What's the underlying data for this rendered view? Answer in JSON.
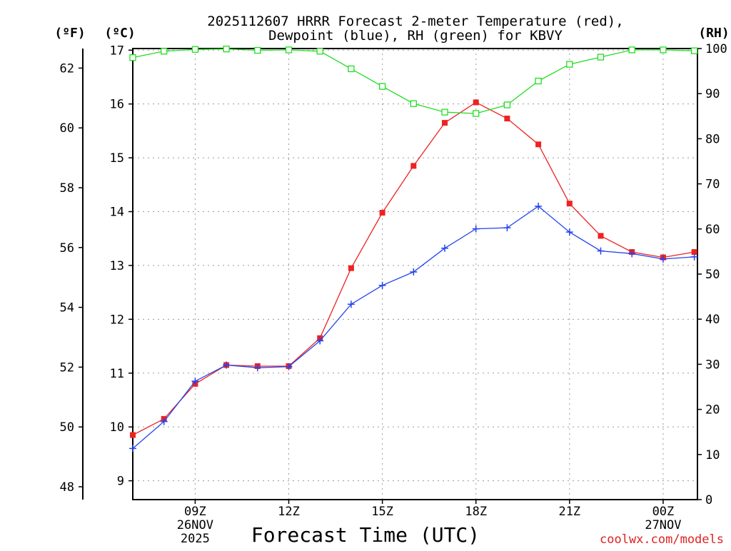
{
  "chart_data": {
    "type": "line",
    "title_line1": "2025112607 HRRR Forecast 2-meter Temperature (red),",
    "title_line2": "Dewpoint (blue), RH (green) for KBVY",
    "xlabel": "Forecast Time (UTC)",
    "left_unit_f": "(ºF)",
    "left_unit_c": "(ºC)",
    "right_unit_rh": "(RH)",
    "credit": "coolwx.com/models",
    "x_hours": [
      7,
      8,
      9,
      10,
      11,
      12,
      13,
      14,
      15,
      16,
      17,
      18,
      19,
      20,
      21,
      22,
      23,
      24,
      25
    ],
    "xlim": [
      7,
      25.1
    ],
    "x_ticks": [
      {
        "hour": 9,
        "lines": [
          "09Z",
          "26NOV",
          "2025"
        ]
      },
      {
        "hour": 12,
        "lines": [
          "12Z"
        ]
      },
      {
        "hour": 15,
        "lines": [
          "15Z"
        ]
      },
      {
        "hour": 18,
        "lines": [
          "18Z"
        ]
      },
      {
        "hour": 21,
        "lines": [
          "21Z"
        ]
      },
      {
        "hour": 24,
        "lines": [
          "00Z",
          "27NOV"
        ]
      }
    ],
    "ylim_c": [
      8.65,
      17.03
    ],
    "ylim_rh": [
      0,
      100
    ],
    "c_ticks": [
      9,
      10,
      11,
      12,
      13,
      14,
      15,
      16,
      17
    ],
    "f_ticks": [
      48,
      50,
      52,
      54,
      56,
      58,
      60,
      62
    ],
    "rh_ticks": [
      0,
      10,
      20,
      30,
      40,
      50,
      60,
      70,
      80,
      90,
      100
    ],
    "grid": true,
    "series": [
      {
        "name": "Temperature",
        "axis": "c",
        "color": "#ee2222",
        "marker": "filled-square",
        "values": [
          9.85,
          10.15,
          10.8,
          11.15,
          11.13,
          11.13,
          11.65,
          12.95,
          13.98,
          14.85,
          15.65,
          16.03,
          15.73,
          15.25,
          14.15,
          13.55,
          13.25,
          13.15,
          13.25
        ]
      },
      {
        "name": "Dewpoint",
        "axis": "c",
        "color": "#2244ee",
        "marker": "plus",
        "values": [
          9.6,
          10.1,
          10.85,
          11.15,
          11.1,
          11.12,
          11.6,
          12.28,
          12.63,
          12.88,
          13.32,
          13.68,
          13.7,
          14.1,
          13.62,
          13.27,
          13.22,
          13.12,
          13.16
        ]
      },
      {
        "name": "RH",
        "axis": "rh",
        "color": "#22dd22",
        "marker": "open-square",
        "values": [
          98.0,
          99.4,
          99.8,
          99.9,
          99.6,
          99.7,
          99.4,
          95.5,
          91.6,
          87.8,
          85.9,
          85.6,
          87.5,
          92.8,
          96.5,
          98.1,
          99.7,
          99.7,
          99.5
        ]
      }
    ]
  }
}
